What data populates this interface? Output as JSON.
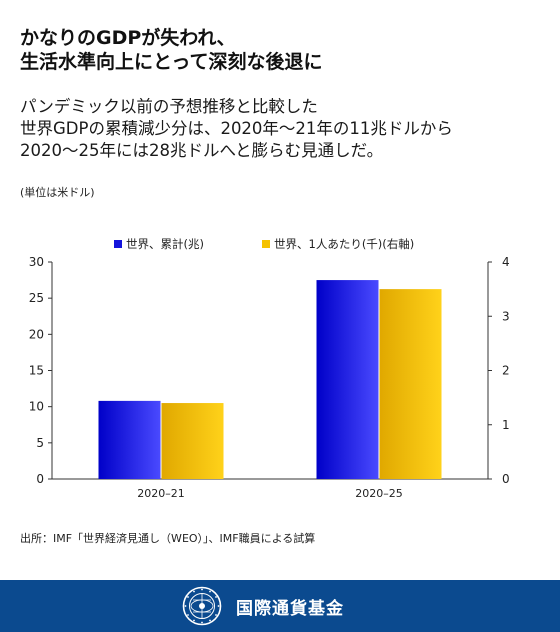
{
  "title": {
    "line1": "かなりのGDPが失われ、",
    "line2": "生活水準向上にとって深刻な後退に"
  },
  "subtitle": {
    "line1": "パンデミック以前の予想推移と比較した",
    "line2": "世界GDPの累積減少分は、2020年〜21年の11兆ドルから",
    "line3": "2020〜25年には28兆ドルへと膨らむ見通しだ。"
  },
  "unit_note": "(単位は米ドル)",
  "source": "出所：IMF「世界経済見通し（WEO）」、IMF職員による試算",
  "footer": {
    "org_name": "国際通貨基金"
  },
  "colors": {
    "series_left": "#1414dc",
    "series_right": "#f5c200",
    "footer_bg": "#0b4a8f"
  },
  "chart_data": {
    "type": "bar",
    "categories": [
      "2020–21",
      "2020–25"
    ],
    "series": [
      {
        "name": "世界、累計(兆)",
        "axis": "left",
        "values": [
          10.8,
          27.5
        ]
      },
      {
        "name": "世界、1人あたり(千)(右軸)",
        "axis": "right",
        "values": [
          1.4,
          3.5
        ]
      }
    ],
    "y_left": {
      "min": 0,
      "max": 30,
      "ticks": [
        0,
        5,
        10,
        15,
        20,
        25,
        30
      ]
    },
    "y_right": {
      "min": 0,
      "max": 4,
      "ticks": [
        0,
        1,
        2,
        3,
        4
      ]
    },
    "legend_position": "top",
    "grid": false
  }
}
